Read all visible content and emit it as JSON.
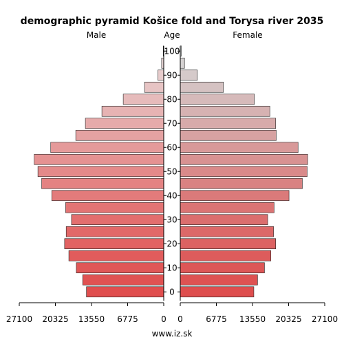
{
  "chart_data": {
    "type": "bar",
    "subtype": "population-pyramid",
    "title": "demographic pyramid Košice fold and Torysa river 2035",
    "left_label": "Male",
    "center_label": "Age",
    "right_label": "Female",
    "source": "www.iz.sk",
    "age_groups": [
      "0",
      "5",
      "10",
      "15",
      "20",
      "25",
      "30",
      "35",
      "40",
      "45",
      "50",
      "55",
      "60",
      "65",
      "70",
      "75",
      "80",
      "85",
      "90",
      "95",
      "100"
    ],
    "age_tick_labels": [
      "0",
      "10",
      "20",
      "30",
      "40",
      "50",
      "60",
      "70",
      "80",
      "90",
      "100"
    ],
    "x_tick_labels_left": [
      "27100",
      "20325",
      "13550",
      "6775",
      "0"
    ],
    "x_tick_labels_right": [
      "0",
      "6775",
      "13550",
      "20325",
      "27100"
    ],
    "xlim": [
      0,
      27100
    ],
    "series": [
      {
        "name": "Male",
        "values": [
          14500,
          15200,
          16400,
          17800,
          18600,
          18300,
          17300,
          18400,
          21000,
          22900,
          23600,
          24300,
          21200,
          16500,
          14700,
          11600,
          7600,
          3600,
          1100,
          400,
          100
        ],
        "colors": [
          "#e04e4e",
          "#e05252",
          "#e05757",
          "#e15c5c",
          "#e26262",
          "#e26868",
          "#e36e6e",
          "#e37474",
          "#e37b7b",
          "#e48282",
          "#e48a8a",
          "#e59292",
          "#e59a9a",
          "#e5a2a2",
          "#e6aaaa",
          "#e6b3b3",
          "#e6bbbb",
          "#e7c4c4",
          "#e7cccc",
          "#e7d4d4",
          "#e8dcdc"
        ]
      },
      {
        "name": "Female",
        "values": [
          13800,
          14500,
          15800,
          17000,
          17900,
          17500,
          16400,
          17600,
          20400,
          22900,
          23800,
          23900,
          22100,
          18000,
          17900,
          16800,
          13900,
          8100,
          3200,
          800,
          200
        ],
        "colors": [
          "#de4e4e",
          "#de5252",
          "#dd5757",
          "#dd5c5c",
          "#dc6262",
          "#dc6868",
          "#db6e6e",
          "#db7474",
          "#da7a7a",
          "#d98282",
          "#d98a8a",
          "#d89292",
          "#d89999",
          "#d7a2a2",
          "#d7aaaa",
          "#d6b2b2",
          "#d6baba",
          "#d5c2c2",
          "#d5caca",
          "#d5d2d2",
          "#d4dada"
        ]
      }
    ]
  }
}
